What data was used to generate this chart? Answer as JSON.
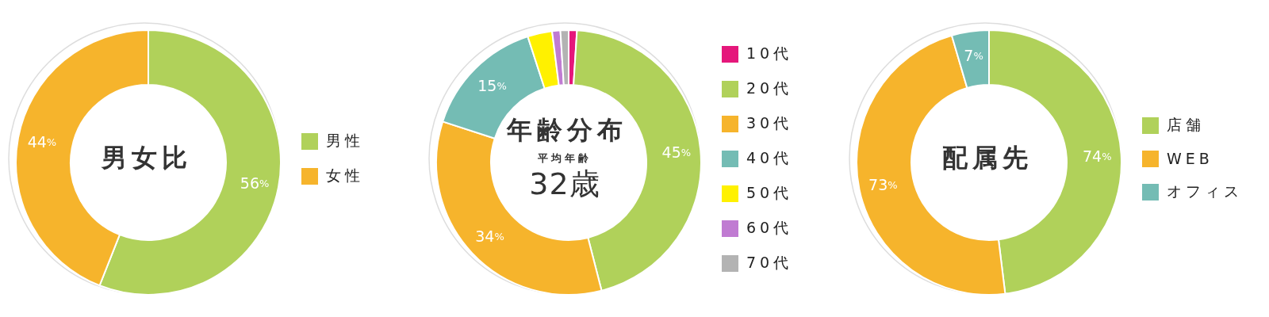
{
  "chart_data": [
    {
      "type": "donut",
      "title": "男女比",
      "categories": [
        "男性",
        "女性"
      ],
      "values": [
        56,
        44
      ],
      "colors": [
        "#b0d15a",
        "#f6b42c"
      ],
      "value_labels": [
        "56%",
        "44%"
      ],
      "legend": "right"
    },
    {
      "type": "donut",
      "title": "年齢分布",
      "annotations": [
        "平均年齢",
        "32歳"
      ],
      "categories": [
        "10代",
        "20代",
        "30代",
        "40代",
        "50代",
        "60代",
        "70代"
      ],
      "values": [
        1,
        45,
        34,
        15,
        3,
        1,
        1
      ],
      "colors": [
        "#e5177b",
        "#b0d15a",
        "#f6b42c",
        "#74bcb4",
        "#fff100",
        "#c07bd2",
        "#b3b3b3"
      ],
      "value_labels": [
        null,
        "45%",
        "34%",
        "15%",
        null,
        null,
        null
      ],
      "legend": "right"
    },
    {
      "type": "donut",
      "title": "配属先",
      "categories": [
        "店舗",
        "WEB",
        "オフィス"
      ],
      "values": [
        74,
        73,
        7
      ],
      "colors": [
        "#b0d15a",
        "#f6b42c",
        "#74bcb4"
      ],
      "value_labels": [
        "74%",
        "73%",
        "7%"
      ],
      "legend": "right"
    }
  ]
}
